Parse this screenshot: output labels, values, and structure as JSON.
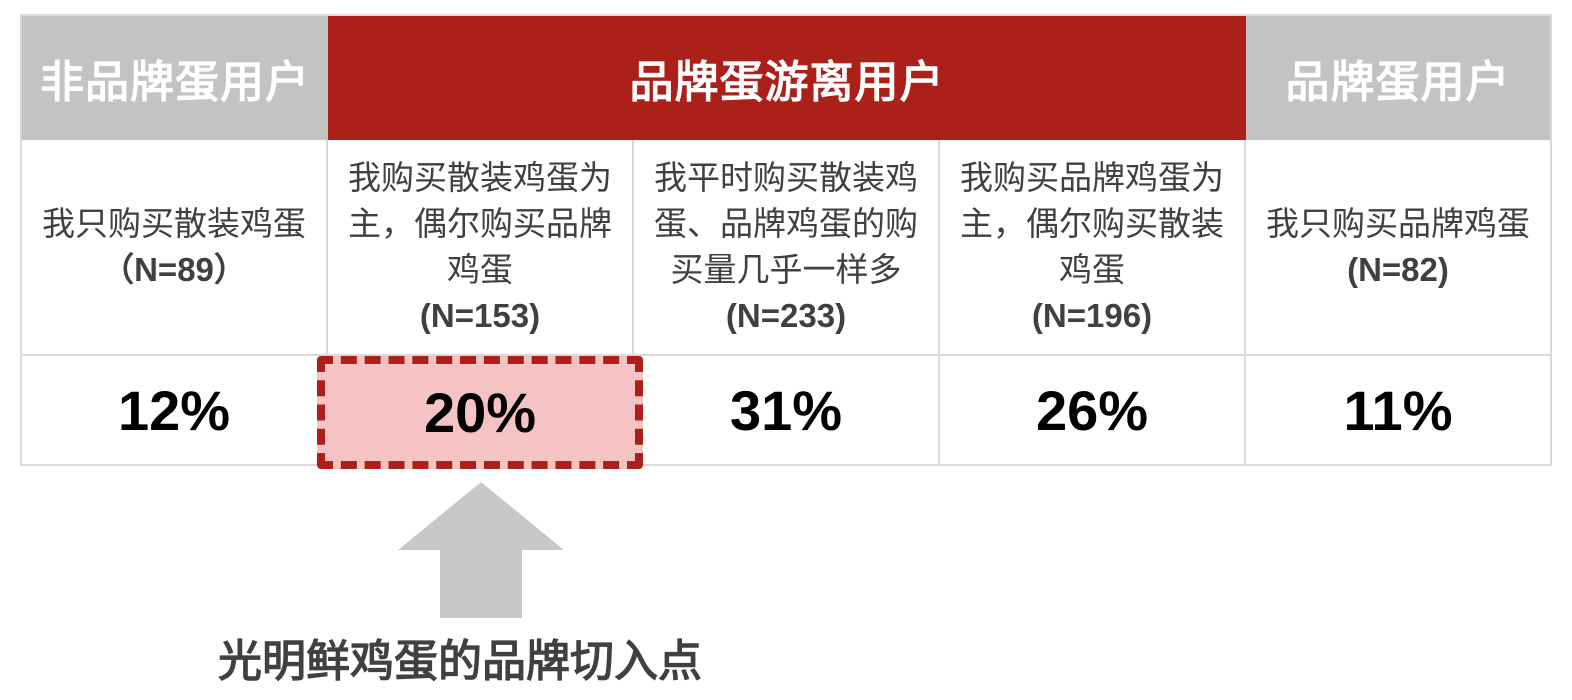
{
  "headers": {
    "non_brand": "非品牌蛋用户",
    "wandering": "品牌蛋游离用户",
    "brand": "品牌蛋用户"
  },
  "colors": {
    "header_gray": "#c3c3c3",
    "header_red": "#ab2119",
    "highlight_fill": "#f5c3c3",
    "arrow_gray": "#c8c8c8"
  },
  "segments": [
    {
      "lines": [
        "我只购买散装鸡蛋"
      ],
      "n": "（N=89）",
      "value": "12%"
    },
    {
      "lines": [
        "我购买散装鸡蛋为",
        "主，偶尔购买品牌",
        "鸡蛋"
      ],
      "n": "(N=153)",
      "value": "20%"
    },
    {
      "lines": [
        "我平时购买散装鸡",
        "蛋、品牌鸡蛋的购",
        "买量几乎一样多"
      ],
      "n": "(N=233)",
      "value": "31%"
    },
    {
      "lines": [
        "我购买品牌鸡蛋为",
        "主，偶尔购买散装",
        "鸡蛋"
      ],
      "n": "(N=196)",
      "value": "26%"
    },
    {
      "lines": [
        "我只购买品牌鸡蛋"
      ],
      "n": "(N=82)",
      "value": "11%"
    }
  ],
  "caption": "光明鲜鸡蛋的品牌切入点",
  "arrow_icon": "up-arrow-icon"
}
